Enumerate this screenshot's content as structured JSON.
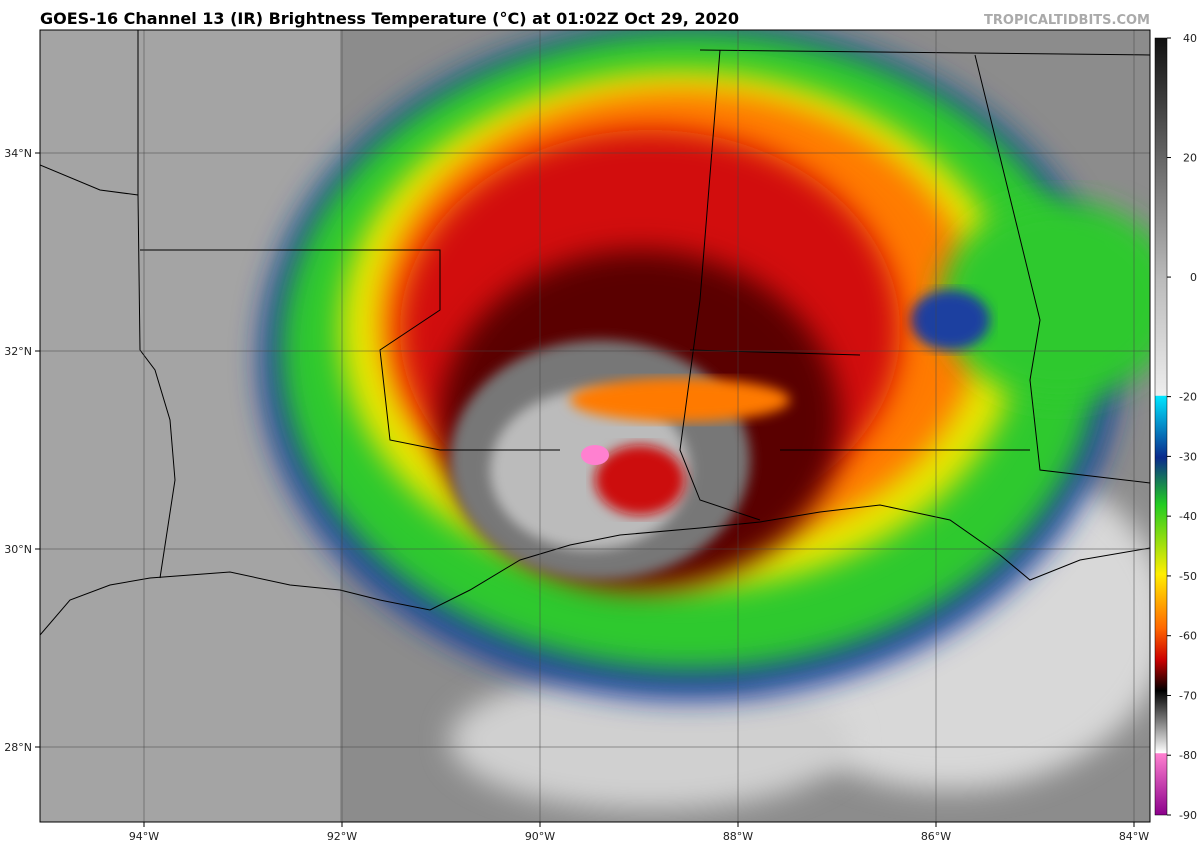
{
  "header": {
    "title": "GOES-16 Channel 13 (IR) Brightness Temperature (°C) at 01:02Z Oct 29, 2020",
    "watermark": "TROPICALTIDBITS.COM"
  },
  "map": {
    "lat_labels": [
      {
        "value": 34,
        "label": "34°N"
      },
      {
        "value": 32,
        "label": "32°N"
      },
      {
        "value": 30,
        "label": "30°N"
      },
      {
        "value": 28,
        "label": "28°N"
      }
    ],
    "lon_labels": [
      {
        "value": -94,
        "label": "94°W"
      },
      {
        "value": -92,
        "label": "92°W"
      },
      {
        "value": -90,
        "label": "90°W"
      },
      {
        "value": -88,
        "label": "88°W"
      },
      {
        "value": -86,
        "label": "86°W"
      },
      {
        "value": -84,
        "label": "84°W"
      }
    ]
  },
  "colorbar": {
    "range": [
      -90,
      40
    ],
    "ticks": [
      40,
      20,
      0,
      -20,
      -30,
      -40,
      -50,
      -60,
      -70,
      -80,
      -90
    ]
  }
}
